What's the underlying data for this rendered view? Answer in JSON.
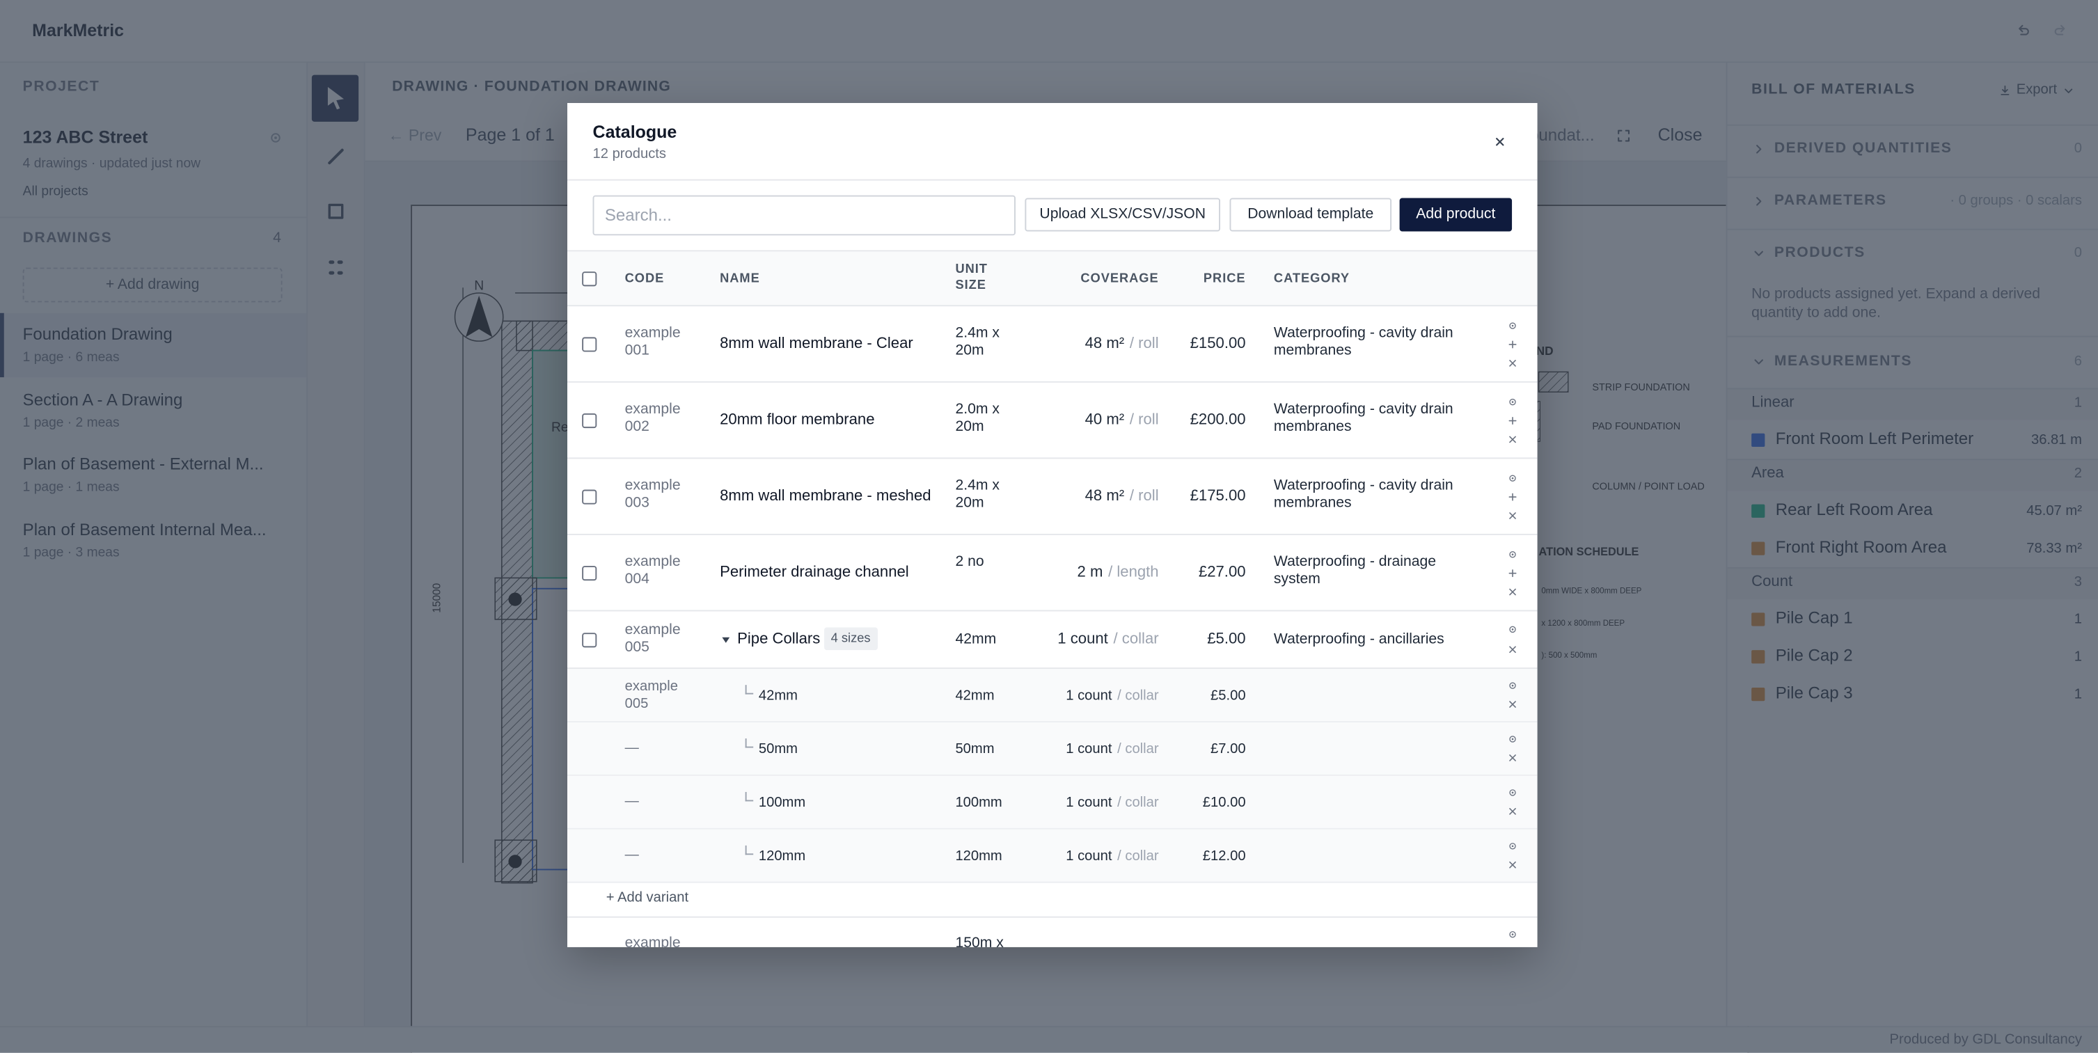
{
  "app": {
    "brand": "MarkMetric",
    "footer": "Produced by GDL Consultancy"
  },
  "sidebar": {
    "project_label": "PROJECT",
    "project_name": "123 ABC Street",
    "project_meta": "4 drawings · updated just now",
    "all_projects": "All projects",
    "drawings_label": "DRAWINGS",
    "drawings_count": "4",
    "add_drawing": "+ Add drawing",
    "drawings": [
      {
        "name": "Foundation Drawing",
        "meta": "1 page · 6 meas"
      },
      {
        "name": "Section A - A Drawing",
        "meta": "1 page · 2 meas"
      },
      {
        "name": "Plan of Basement - External M...",
        "meta": "1 page · 1 meas"
      },
      {
        "name": "Plan of Basement Internal Mea...",
        "meta": "1 page · 3 meas"
      }
    ]
  },
  "viewer": {
    "breadcrumb": "DRAWING · FOUNDATION DRAWING",
    "prev": "← Prev",
    "page": "Page 1 of 1",
    "drawing_name": "oundat...",
    "close": "Close",
    "drawing_texts": [
      "N",
      "15000",
      "Re",
      "ND",
      "STRIP FOUNDATION",
      "PAD FOUNDATION",
      "COLUMN / POINT LOAD",
      "ATION SCHEDULE",
      "0mm WIDE x 800mm DEEP",
      "x 1200 x 800mm DEEP",
      "): 500 x 500mm"
    ]
  },
  "bom": {
    "title": "BILL OF MATERIALS",
    "export": "Export",
    "sections": [
      {
        "label": "DERIVED QUANTITIES",
        "count": "0"
      },
      {
        "label": "PARAMETERS",
        "count": "· 0 groups · 0 scalars"
      },
      {
        "label": "PRODUCTS",
        "count": "0"
      }
    ],
    "empty": "No products assigned yet. Expand a derived quantity to add one.",
    "measurements_label": "MEASUREMENTS",
    "measurements_count": "6",
    "groups": [
      {
        "label": "Linear",
        "count": "1",
        "items": [
          {
            "name": "Front Room Left Perimeter",
            "value": "36.81 m",
            "color": "#2563eb"
          }
        ]
      },
      {
        "label": "Area",
        "count": "2",
        "items": [
          {
            "name": "Rear Left Room Area",
            "value": "45.07 m²",
            "color": "#10b981"
          },
          {
            "name": "Front Right Room Area",
            "value": "78.33 m²",
            "color": "#e08a2c"
          }
        ]
      },
      {
        "label": "Count",
        "count": "3",
        "items": [
          {
            "name": "Pile Cap 1",
            "value": "1",
            "color": "#e08a2c"
          },
          {
            "name": "Pile Cap 2",
            "value": "1",
            "color": "#e08a2c"
          },
          {
            "name": "Pile Cap 3",
            "value": "1",
            "color": "#e08a2c"
          }
        ]
      }
    ]
  },
  "catalogue": {
    "title": "Catalogue",
    "subtitle": "12 products",
    "search_placeholder": "Search...",
    "buttons": [
      "Upload XLSX/CSV/JSON",
      "Download template",
      "Add product"
    ],
    "columns": [
      "CODE",
      "NAME",
      "UNIT SIZE",
      "COVERAGE",
      "PRICE",
      "CATEGORY"
    ],
    "rows": [
      {
        "code": "example 001",
        "name": "8mm wall membrane - Clear",
        "unit_size": "2.4m x 20m",
        "coverage": "48 m²",
        "coverage_unit": "/ roll",
        "price": "£150.00",
        "category": "Waterproofing - cavity drain membranes"
      },
      {
        "code": "example 002",
        "name": "20mm floor membrane",
        "unit_size": "2.0m x 20m",
        "coverage": "40 m²",
        "coverage_unit": "/ roll",
        "price": "£200.00",
        "category": "Waterproofing - cavity drain membranes"
      },
      {
        "code": "example 003",
        "name": "8mm wall membrane - meshed",
        "unit_size": "2.4m x 20m",
        "coverage": "48 m²",
        "coverage_unit": "/ roll",
        "price": "£175.00",
        "category": "Waterproofing - cavity drain membranes"
      },
      {
        "code": "example 004",
        "name": "Perimeter drainage channel",
        "unit_size": "2 no",
        "coverage": "2 m",
        "coverage_unit": "/ length",
        "price": "£27.00",
        "category": "Waterproofing - drainage system"
      }
    ],
    "group_row": {
      "code": "example 005",
      "name": "Pipe Collars",
      "badge": "4 sizes",
      "unit_size": "42mm",
      "coverage": "1 count",
      "coverage_unit": "/ collar",
      "price": "£5.00",
      "category": "Waterproofing - ancillaries",
      "variants": [
        {
          "code": "example 005",
          "name": "42mm",
          "unit_size": "42mm",
          "coverage": "1 count",
          "coverage_unit": "/ collar",
          "price": "£5.00"
        },
        {
          "code": "—",
          "name": "50mm",
          "unit_size": "50mm",
          "coverage": "1 count",
          "coverage_unit": "/ collar",
          "price": "£7.00"
        },
        {
          "code": "—",
          "name": "100mm",
          "unit_size": "100mm",
          "coverage": "1 count",
          "coverage_unit": "/ collar",
          "price": "£10.00"
        },
        {
          "code": "—",
          "name": "120mm",
          "unit_size": "120mm",
          "coverage": "1 count",
          "coverage_unit": "/ collar",
          "price": "£12.00"
        }
      ],
      "add_variant": "+ Add variant"
    },
    "partial_row": {
      "code": "example",
      "unit_size": "150m x"
    }
  }
}
